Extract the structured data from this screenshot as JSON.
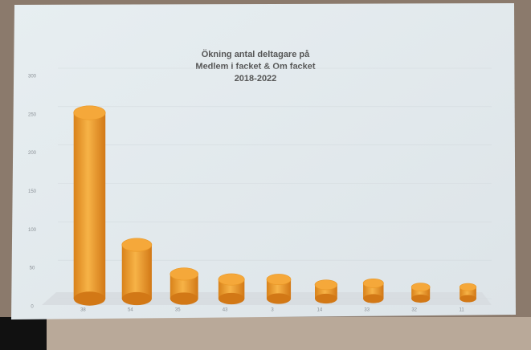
{
  "chart_data": {
    "type": "bar",
    "title": [
      "Ökning antal deltagare på",
      "Medlem i facket & Om facket",
      "2018-2022"
    ],
    "categories": [
      "38",
      "54",
      "35",
      "43",
      "3",
      "14",
      "33",
      "32",
      "11"
    ],
    "values": [
      242,
      70,
      32,
      25,
      25,
      18,
      20,
      15,
      15
    ],
    "color": "#f2a230",
    "ylim": [
      0,
      300
    ],
    "yticks": [
      0,
      50,
      100,
      150,
      200,
      250,
      300
    ],
    "grid": true
  }
}
